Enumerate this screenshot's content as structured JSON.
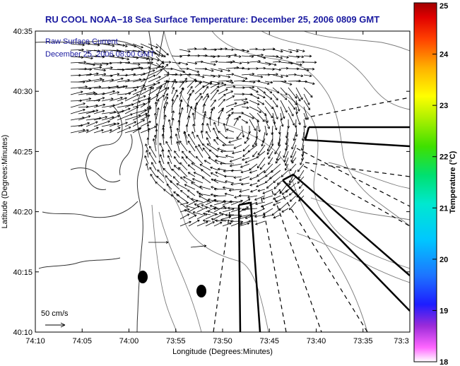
{
  "title": "RU COOL  NOAA−18  Sea Surface Temperature:  December 25, 2006 0809 GMT",
  "legend": {
    "line1": "Raw Surface Current",
    "line2": "December 25, 2006 08:00 GMT"
  },
  "axes": {
    "xlabel": "Longitude (Degrees:Minutes)",
    "ylabel": "Latitude (Degrees:Minutes)",
    "xticks": [
      "74:10",
      "74:05",
      "74:00",
      "73:55",
      "73:50",
      "73:45",
      "73:40",
      "73:35",
      "73:3"
    ],
    "yticks": [
      "40:35",
      "40:30",
      "40:25",
      "40:20",
      "40:15",
      "40:10"
    ]
  },
  "colorbar": {
    "label": "Temperature (°C)",
    "ticks": [
      "25",
      "24",
      "23",
      "22",
      "21",
      "20",
      "19",
      "18"
    ],
    "range": [
      18,
      25
    ]
  },
  "scale_label": "50 cm/s",
  "colors": {
    "title": "#1a1aa0",
    "legend": "#1a1aa0"
  }
}
